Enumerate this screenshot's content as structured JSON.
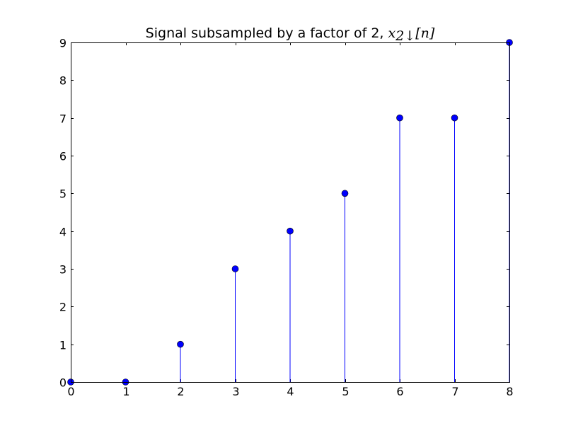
{
  "chart_data": {
    "type": "stem",
    "title": "Signal subsampled by a factor of 2, ",
    "title_math": "x",
    "title_math_sub": "2↓",
    "title_math_tail": "[n]",
    "xlabel": "",
    "ylabel": "",
    "x": [
      0,
      1,
      2,
      3,
      4,
      5,
      6,
      7,
      8
    ],
    "y": [
      0,
      0,
      1,
      3,
      4,
      5,
      7,
      7,
      9
    ],
    "xlim": [
      0,
      8
    ],
    "ylim": [
      0,
      9
    ],
    "xticks": [
      "0",
      "1",
      "2",
      "3",
      "4",
      "5",
      "6",
      "7",
      "8"
    ],
    "yticks": [
      "0",
      "1",
      "2",
      "3",
      "4",
      "5",
      "6",
      "7",
      "8",
      "9"
    ],
    "grid": false,
    "colors": {
      "stem": "#0000ff",
      "marker": "#0000ff",
      "marker_edge": "#000000",
      "axes": "#000000"
    }
  }
}
